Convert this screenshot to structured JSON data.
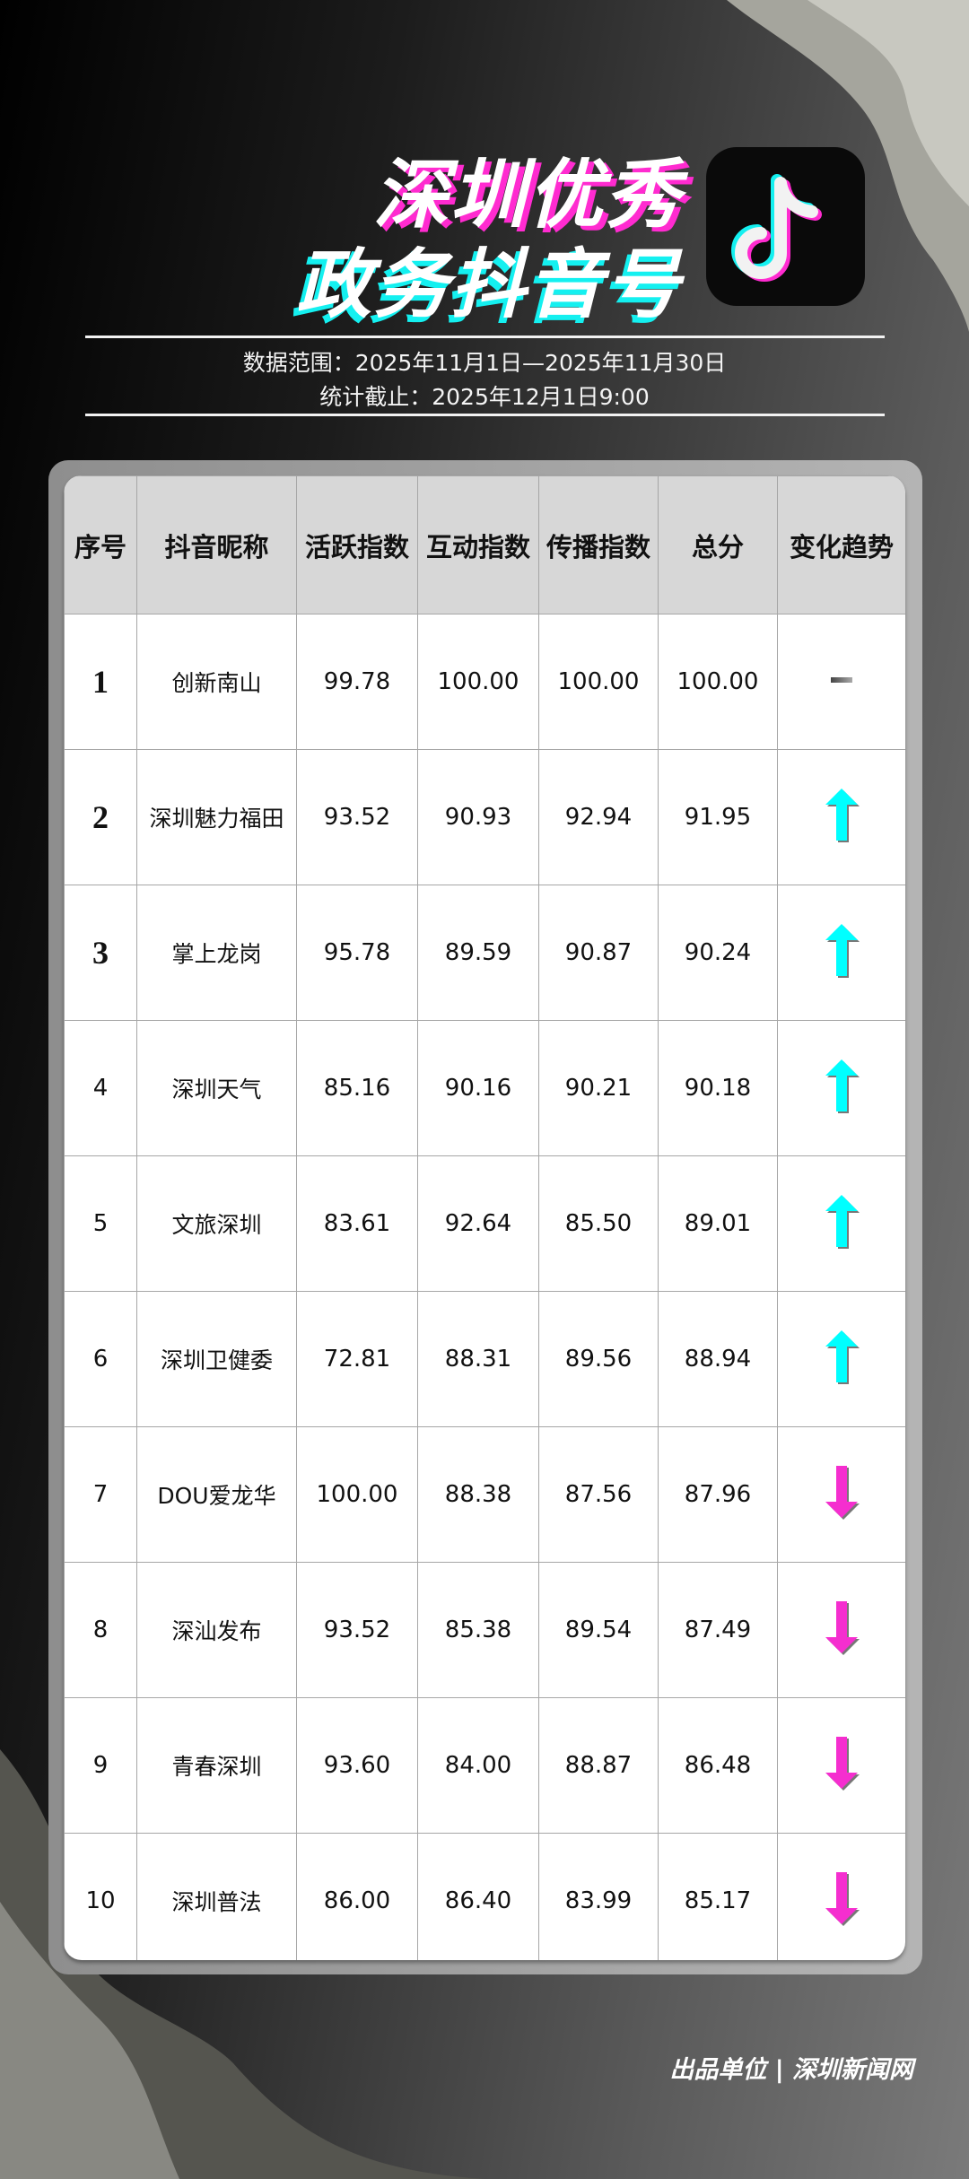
{
  "title": {
    "line1": "深圳优秀",
    "line2": "政务抖音号"
  },
  "logo": {
    "icon": "douyin-logo",
    "colors": {
      "cyan": "#14F0F0",
      "magenta": "#FF2BD0"
    }
  },
  "meta": {
    "data_range": "数据范围：2025年11月1日—2025年11月30日",
    "cutoff": "统计截止：2025年12月1日9:00"
  },
  "table": {
    "headers": [
      "序号",
      "抖音昵称",
      "活跃指数",
      "互动指数",
      "传播指数",
      "总分",
      "变化趋势"
    ],
    "rows": [
      {
        "rank": "1",
        "name": "创新南山",
        "activity": "99.78",
        "interaction": "100.00",
        "spread": "100.00",
        "total": "100.00",
        "trend": "flat"
      },
      {
        "rank": "2",
        "name": "深圳魅力福田",
        "activity": "93.52",
        "interaction": "90.93",
        "spread": "92.94",
        "total": "91.95",
        "trend": "up"
      },
      {
        "rank": "3",
        "name": "掌上龙岗",
        "activity": "95.78",
        "interaction": "89.59",
        "spread": "90.87",
        "total": "90.24",
        "trend": "up"
      },
      {
        "rank": "4",
        "name": "深圳天气",
        "activity": "85.16",
        "interaction": "90.16",
        "spread": "90.21",
        "total": "90.18",
        "trend": "up"
      },
      {
        "rank": "5",
        "name": "文旅深圳",
        "activity": "83.61",
        "interaction": "92.64",
        "spread": "85.50",
        "total": "89.01",
        "trend": "up"
      },
      {
        "rank": "6",
        "name": "深圳卫健委",
        "activity": "72.81",
        "interaction": "88.31",
        "spread": "89.56",
        "total": "88.94",
        "trend": "up"
      },
      {
        "rank": "7",
        "name": "DOU爱龙华",
        "activity": "100.00",
        "interaction": "88.38",
        "spread": "87.56",
        "total": "87.96",
        "trend": "down"
      },
      {
        "rank": "8",
        "name": "深汕发布",
        "activity": "93.52",
        "interaction": "85.38",
        "spread": "89.54",
        "total": "87.49",
        "trend": "down"
      },
      {
        "rank": "9",
        "name": "青春深圳",
        "activity": "93.60",
        "interaction": "84.00",
        "spread": "88.87",
        "total": "86.48",
        "trend": "down"
      },
      {
        "rank": "10",
        "name": "深圳普法",
        "activity": "86.00",
        "interaction": "86.40",
        "spread": "83.99",
        "total": "85.17",
        "trend": "down"
      }
    ]
  },
  "trend_colors": {
    "up": "#00FFFF",
    "down": "#F52ECF",
    "flat": "#666666"
  },
  "footer": "出品单位 | 深圳新闻网"
}
